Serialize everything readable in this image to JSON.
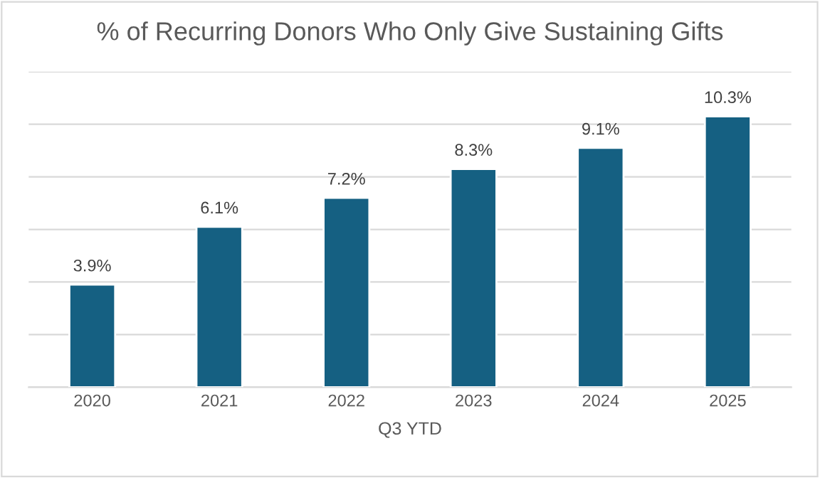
{
  "chart_data": {
    "type": "bar",
    "title": "% of Recurring Donors Who Only Give Sustaining Gifts",
    "xlabel": "Q3 YTD",
    "categories": [
      "2020",
      "2021",
      "2022",
      "2023",
      "2024",
      "2025"
    ],
    "values": [
      3.9,
      6.1,
      7.2,
      8.3,
      9.1,
      10.3
    ],
    "color": "#156082",
    "value_labels": [
      "3.9%",
      "6.1%",
      "7.2%",
      "8.3%",
      "9.1%",
      "10.3%"
    ],
    "ylim": [
      0,
      12
    ],
    "yticks": [
      {
        "value": 0,
        "label": null
      },
      {
        "value": 2,
        "label": null
      },
      {
        "value": 4,
        "label": null
      },
      {
        "value": 6,
        "label": null
      },
      {
        "value": 8,
        "label": null
      },
      {
        "value": 10,
        "label": null
      },
      {
        "value": 12,
        "label": null
      }
    ],
    "tick_labels": "x",
    "grid": "y",
    "legend": false
  }
}
